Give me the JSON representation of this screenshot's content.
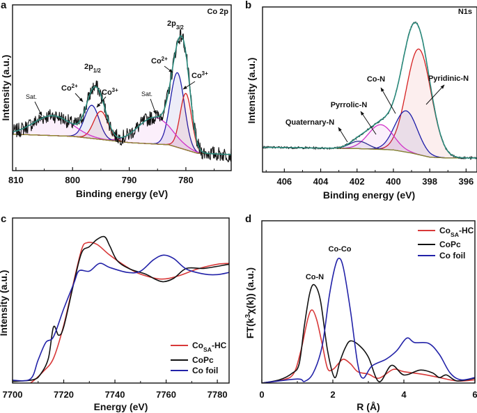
{
  "chart_data": [
    {
      "panel": "a",
      "type": "line",
      "title": "Co 2p",
      "xlabel": "Binding energy (eV)",
      "ylabel": "Intensity (a.u.)",
      "xlim": [
        810.6,
        772
      ],
      "ylim": [
        0,
        100
      ],
      "xticks": [
        810,
        800,
        790,
        780
      ],
      "xminor": [
        805,
        795,
        785,
        775
      ],
      "baseline": [
        [
          810.6,
          22
        ],
        [
          800,
          20.7
        ],
        [
          790,
          16.9
        ],
        [
          783,
          15.6
        ],
        [
          778,
          10.5
        ],
        [
          772,
          9.7
        ]
      ],
      "components": [
        {
          "name": "Co2+ 2p3/2",
          "center": 781.5,
          "amplitude": 45,
          "fwhm": 2.9,
          "color": "#1c1ca8"
        },
        {
          "name": "Co3+ 2p3/2",
          "center": 780.0,
          "amplitude": 34,
          "fwhm": 2.4,
          "color": "#d62020"
        },
        {
          "name": "Sat. 2p3/2",
          "center": 785.5,
          "amplitude": 16,
          "fwhm": 7,
          "color": "#d030c8"
        },
        {
          "name": "Co2+ 2p1/2",
          "center": 796.6,
          "amplitude": 20,
          "fwhm": 3.0,
          "color": "#1c1ca8"
        },
        {
          "name": "Co3+ 2p1/2",
          "center": 795.0,
          "amplitude": 17,
          "fwhm": 3.0,
          "color": "#d62020"
        },
        {
          "name": "Sat. 2p1/2",
          "center": 803.5,
          "amplitude": 12,
          "fwhm": 8,
          "color": "#d030c8"
        }
      ],
      "noise_amplitude": 4.5,
      "annotations": {
        "title": "Co 2p",
        "p32": {
          "base": "2p",
          "sub": "3/2"
        },
        "p12": {
          "base": "2p",
          "sub": "1/2"
        },
        "co2_left": {
          "base": "Co",
          "sup": "2+"
        },
        "co3_left": {
          "base": "Co",
          "sup": "3+"
        },
        "co2_right": {
          "base": "Co",
          "sup": "2+"
        },
        "co3_right": {
          "base": "Co",
          "sup": "3+"
        },
        "sat_left": "Sat.",
        "sat_right": "Sat."
      },
      "colors": {
        "raw": "#111111",
        "envelope": "#2a8a7c",
        "baseline": "#8c8a2c"
      }
    },
    {
      "panel": "b",
      "type": "line",
      "title": "N1s",
      "xlabel": "Binding energy (eV)",
      "ylabel": "Intensity (a.u.)",
      "xlim": [
        407.2,
        395.4
      ],
      "ylim": [
        0,
        100
      ],
      "xticks": [
        406,
        404,
        402,
        400,
        398,
        396
      ],
      "xminor": [
        407,
        405,
        403,
        401,
        399,
        397
      ],
      "baseline": [
        [
          407.2,
          15
        ],
        [
          402,
          14.2
        ],
        [
          400,
          13.4
        ],
        [
          399,
          11.5
        ],
        [
          398,
          9
        ],
        [
          397,
          8.5
        ],
        [
          395.4,
          8.5
        ]
      ],
      "components": [
        {
          "name": "Pyridinic-N",
          "center": 398.6,
          "amplitude": 64,
          "fwhm": 1.6,
          "color": "#d62020"
        },
        {
          "name": "Co-N",
          "center": 399.3,
          "amplitude": 25,
          "fwhm": 1.45,
          "color": "#1c1ca8"
        },
        {
          "name": "Pyrrolic-N",
          "center": 400.7,
          "amplitude": 15,
          "fwhm": 1.6,
          "color": "#d030c8"
        },
        {
          "name": "Quaternary-N",
          "center": 401.9,
          "amplitude": 4.5,
          "fwhm": 1.2,
          "color": "#2c2c90"
        }
      ],
      "noise_amplitude": 0.6,
      "annotations": {
        "title": "N1s",
        "pyridinic": "Pyridinic-N",
        "con": "Co-N",
        "pyrrolic": "Pyrrolic-N",
        "quaternary": "Quaternary-N"
      },
      "colors": {
        "raw": "#111111",
        "envelope": "#2a8a7c",
        "baseline": "#8c8a2c"
      }
    },
    {
      "panel": "c",
      "type": "line",
      "xlabel": "Energy (eV)",
      "ylabel": "Intensity (a.u.)",
      "xlim": [
        7700,
        7784.6
      ],
      "ylim": [
        0,
        100
      ],
      "xticks": [
        7700,
        7720,
        7740,
        7760,
        7780
      ],
      "xminor": [
        7710,
        7730,
        7750,
        7770
      ],
      "legend": {
        "placement": "bottom-right"
      },
      "series": [
        {
          "name": {
            "base": "Co",
            "sub": "SA",
            "rest": "-HC"
          },
          "color": "#d83838",
          "points": [
            [
              7700,
              -6
            ],
            [
              7707,
              0
            ],
            [
              7712,
              7
            ],
            [
              7716,
              15
            ],
            [
              7720,
              35
            ],
            [
              7724,
              62
            ],
            [
              7727,
              81
            ],
            [
              7729,
              85
            ],
            [
              7733,
              84
            ],
            [
              7738,
              77.5
            ],
            [
              7745,
              70
            ],
            [
              7750,
              66
            ],
            [
              7758,
              63
            ],
            [
              7765,
              65
            ],
            [
              7772,
              69
            ],
            [
              7780,
              72
            ],
            [
              7784.6,
              72.5
            ]
          ]
        },
        {
          "name": {
            "base": "CoPc"
          },
          "color": "#111111",
          "points": [
            [
              7700,
              1
            ],
            [
              7708,
              2
            ],
            [
              7711,
              5.5
            ],
            [
              7714,
              15
            ],
            [
              7716,
              34
            ],
            [
              7718,
              29
            ],
            [
              7720,
              34
            ],
            [
              7724,
              61
            ],
            [
              7727,
              79
            ],
            [
              7730,
              82.6
            ],
            [
              7733,
              87
            ],
            [
              7736,
              88.6
            ],
            [
              7738,
              83
            ],
            [
              7741,
              74
            ],
            [
              7746,
              69
            ],
            [
              7752,
              66
            ],
            [
              7756,
              62.7
            ],
            [
              7759,
              61.4
            ],
            [
              7763,
              63.5
            ],
            [
              7768,
              69.5
            ],
            [
              7775,
              69.5
            ],
            [
              7784.6,
              72
            ]
          ]
        },
        {
          "name": {
            "base": "Co foil"
          },
          "color": "#2222a8",
          "points": [
            [
              7700,
              1.7
            ],
            [
              7707,
              2.5
            ],
            [
              7710,
              14
            ],
            [
              7713,
              24.6
            ],
            [
              7716,
              28
            ],
            [
              7720,
              45
            ],
            [
              7724,
              60.6
            ],
            [
              7726,
              68
            ],
            [
              7730,
              67.8
            ],
            [
              7734,
              72.5
            ],
            [
              7738,
              70
            ],
            [
              7745,
              67
            ],
            [
              7750,
              67.8
            ],
            [
              7755,
              74.6
            ],
            [
              7759,
              77.5
            ],
            [
              7763,
              75.4
            ],
            [
              7768,
              69
            ],
            [
              7775,
              66
            ],
            [
              7780,
              65.7
            ],
            [
              7784.6,
              67
            ]
          ]
        }
      ]
    },
    {
      "panel": "d",
      "type": "line",
      "xlabel": "R (Å)",
      "ylabel": {
        "pre": "FT(k",
        "sup": "3",
        "post": "χ(k)) (a.u.)"
      },
      "xlim": [
        0,
        6
      ],
      "ylim": [
        0,
        100
      ],
      "xticks": [
        0,
        2,
        4,
        6
      ],
      "xminor": [
        1,
        3,
        5
      ],
      "legend": {
        "placement": "top-right"
      },
      "annotations": {
        "con": "Co-N",
        "coco": "Co-Co"
      },
      "series": [
        {
          "name": {
            "base": "Co",
            "sub": "SA",
            "rest": "-HC"
          },
          "color": "#d83838",
          "points": [
            [
              0,
              0
            ],
            [
              0.6,
              2
            ],
            [
              0.9,
              6
            ],
            [
              1.1,
              20
            ],
            [
              1.3,
              40
            ],
            [
              1.42,
              45
            ],
            [
              1.55,
              38.6
            ],
            [
              1.7,
              24
            ],
            [
              1.85,
              9
            ],
            [
              2.0,
              8.4
            ],
            [
              2.15,
              11.8
            ],
            [
              2.3,
              14.7
            ],
            [
              2.5,
              11.8
            ],
            [
              2.7,
              7
            ],
            [
              3.0,
              5.5
            ],
            [
              3.3,
              3
            ],
            [
              3.7,
              8.4
            ],
            [
              4.0,
              7
            ],
            [
              4.5,
              5.5
            ],
            [
              5.0,
              3.4
            ],
            [
              5.5,
              1.3
            ],
            [
              6,
              2
            ]
          ]
        },
        {
          "name": {
            "base": "CoPc"
          },
          "color": "#111111",
          "points": [
            [
              0,
              0
            ],
            [
              0.5,
              2
            ],
            [
              0.85,
              6
            ],
            [
              1.05,
              11.8
            ],
            [
              1.2,
              35.7
            ],
            [
              1.35,
              55.5
            ],
            [
              1.48,
              60.5
            ],
            [
              1.65,
              51
            ],
            [
              1.85,
              20
            ],
            [
              2.05,
              3.4
            ],
            [
              2.2,
              13.4
            ],
            [
              2.35,
              21.8
            ],
            [
              2.5,
              26
            ],
            [
              2.75,
              23
            ],
            [
              3.0,
              16
            ],
            [
              3.3,
              0.8
            ],
            [
              3.65,
              10.9
            ],
            [
              4.0,
              5
            ],
            [
              4.45,
              8
            ],
            [
              4.8,
              6.3
            ],
            [
              5.0,
              3.4
            ],
            [
              5.2,
              5
            ],
            [
              5.5,
              1.3
            ],
            [
              6,
              3
            ]
          ]
        },
        {
          "name": {
            "base": "Co foil"
          },
          "color": "#2222a8",
          "points": [
            [
              0,
              0
            ],
            [
              1.0,
              2.5
            ],
            [
              1.2,
              1
            ],
            [
              1.45,
              6.3
            ],
            [
              1.7,
              23
            ],
            [
              1.9,
              53.8
            ],
            [
              2.05,
              70.6
            ],
            [
              2.17,
              76.9
            ],
            [
              2.3,
              70.6
            ],
            [
              2.5,
              44
            ],
            [
              2.7,
              11.8
            ],
            [
              2.85,
              3
            ],
            [
              3.1,
              10.5
            ],
            [
              3.5,
              14.7
            ],
            [
              3.8,
              20
            ],
            [
              4.08,
              27.7
            ],
            [
              4.3,
              25
            ],
            [
              4.7,
              24.4
            ],
            [
              5.0,
              17.6
            ],
            [
              5.3,
              6.3
            ],
            [
              5.6,
              2
            ],
            [
              6,
              3.4
            ]
          ]
        }
      ]
    }
  ]
}
